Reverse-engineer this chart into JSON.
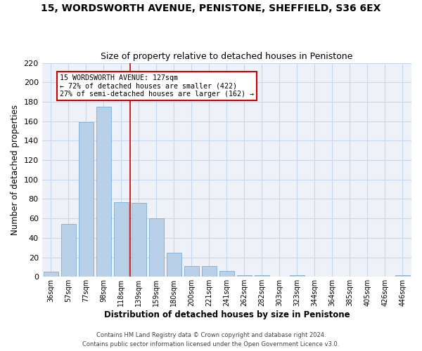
{
  "title": "15, WORDSWORTH AVENUE, PENISTONE, SHEFFIELD, S36 6EX",
  "subtitle": "Size of property relative to detached houses in Penistone",
  "xlabel": "Distribution of detached houses by size in Penistone",
  "ylabel": "Number of detached properties",
  "categories": [
    "36sqm",
    "57sqm",
    "77sqm",
    "98sqm",
    "118sqm",
    "139sqm",
    "159sqm",
    "180sqm",
    "200sqm",
    "221sqm",
    "241sqm",
    "262sqm",
    "282sqm",
    "303sqm",
    "323sqm",
    "344sqm",
    "364sqm",
    "385sqm",
    "405sqm",
    "426sqm",
    "446sqm"
  ],
  "values": [
    5,
    54,
    159,
    175,
    77,
    76,
    60,
    25,
    11,
    11,
    6,
    2,
    2,
    0,
    2,
    0,
    0,
    0,
    0,
    0,
    2
  ],
  "bar_color": "#b8d0e8",
  "bar_edge_color": "#7aadd4",
  "grid_color": "#c8d8ec",
  "background_color": "#eef2f8",
  "vline_color": "#cc0000",
  "annotation_text": "15 WORDSWORTH AVENUE: 127sqm\n← 72% of detached houses are smaller (422)\n27% of semi-detached houses are larger (162) →",
  "annotation_box_color": "#ffffff",
  "annotation_box_edge": "#cc0000",
  "ylim": [
    0,
    220
  ],
  "yticks": [
    0,
    20,
    40,
    60,
    80,
    100,
    120,
    140,
    160,
    180,
    200,
    220
  ],
  "footer_line1": "Contains HM Land Registry data © Crown copyright and database right 2024.",
  "footer_line2": "Contains public sector information licensed under the Open Government Licence v3.0."
}
